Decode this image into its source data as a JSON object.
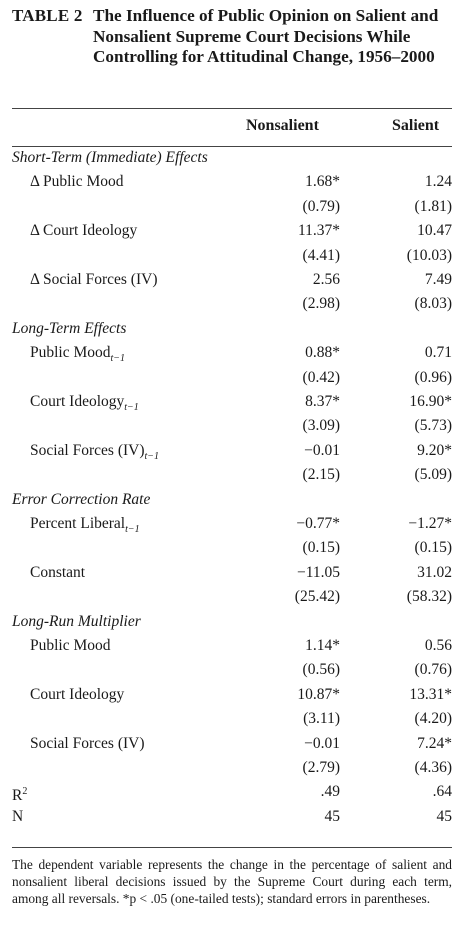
{
  "table": {
    "label": "TABLE 2",
    "title": "The Influence of Public Opinion on Salient and Nonsalient Supreme Court Decisions While Controlling for Attitudinal Change, 1956–2000",
    "columns": [
      "Nonsalient",
      "Salient"
    ]
  },
  "rows": [
    {
      "type": "section",
      "label": "Short-Term (Immediate) Effects"
    },
    {
      "type": "coef",
      "label": "Δ Public Mood",
      "nonsalient": "1.68*",
      "salient": "1.24"
    },
    {
      "type": "se",
      "nonsalient": "(0.79)",
      "salient": "(1.81)"
    },
    {
      "type": "coef",
      "label": "Δ Court Ideology",
      "nonsalient": "11.37*",
      "salient": "10.47"
    },
    {
      "type": "se",
      "nonsalient": "(4.41)",
      "salient": "(10.03)"
    },
    {
      "type": "coef",
      "label": "Δ Social Forces (IV)",
      "nonsalient": "2.56",
      "salient": "7.49"
    },
    {
      "type": "se",
      "nonsalient": "(2.98)",
      "salient": "(8.03)"
    },
    {
      "type": "section",
      "label": "Long-Term Effects"
    },
    {
      "type": "coef",
      "label": "Public Mood",
      "sub": "t−1",
      "nonsalient": "0.88*",
      "salient": "0.71"
    },
    {
      "type": "se",
      "nonsalient": "(0.42)",
      "salient": "(0.96)"
    },
    {
      "type": "coef",
      "label": "Court Ideology",
      "sub": "t−1",
      "nonsalient": "8.37*",
      "salient": "16.90*"
    },
    {
      "type": "se",
      "nonsalient": "(3.09)",
      "salient": "(5.73)"
    },
    {
      "type": "coef",
      "label": "Social Forces (IV)",
      "sub": "t−1",
      "nonsalient": "−0.01",
      "salient": "9.20*"
    },
    {
      "type": "se",
      "nonsalient": "(2.15)",
      "salient": "(5.09)"
    },
    {
      "type": "section",
      "label": "Error Correction Rate"
    },
    {
      "type": "coef",
      "label": "Percent Liberal",
      "sub": "t−1",
      "nonsalient": "−0.77*",
      "salient": "−1.27*"
    },
    {
      "type": "se",
      "nonsalient": "(0.15)",
      "salient": "(0.15)"
    },
    {
      "type": "coef",
      "label": "Constant",
      "nonsalient": "−11.05",
      "salient": "31.02"
    },
    {
      "type": "se",
      "nonsalient": "(25.42)",
      "salient": "(58.32)"
    },
    {
      "type": "section",
      "label": "Long-Run Multiplier"
    },
    {
      "type": "coef",
      "label": "Public Mood",
      "nonsalient": "1.14*",
      "salient": "0.56"
    },
    {
      "type": "se",
      "nonsalient": "(0.56)",
      "salient": "(0.76)"
    },
    {
      "type": "coef",
      "label": "Court Ideology",
      "nonsalient": "10.87*",
      "salient": "13.31*"
    },
    {
      "type": "se",
      "nonsalient": "(3.11)",
      "salient": "(4.20)"
    },
    {
      "type": "coef",
      "label": "Social Forces (IV)",
      "nonsalient": "−0.01",
      "salient": "7.24*"
    },
    {
      "type": "se",
      "nonsalient": "(2.79)",
      "salient": "(4.36)"
    },
    {
      "type": "stat",
      "label": "R",
      "sup": "2",
      "nonsalient": ".49",
      "salient": ".64"
    },
    {
      "type": "stat",
      "label": "N",
      "nonsalient": "45",
      "salient": "45"
    }
  ],
  "note": "The dependent variable represents the change in the percentage of salient and nonsalient liberal decisions issued by the Supreme Court during each term, among all reversals. *p < .05 (one-tailed tests); standard errors in parentheses."
}
